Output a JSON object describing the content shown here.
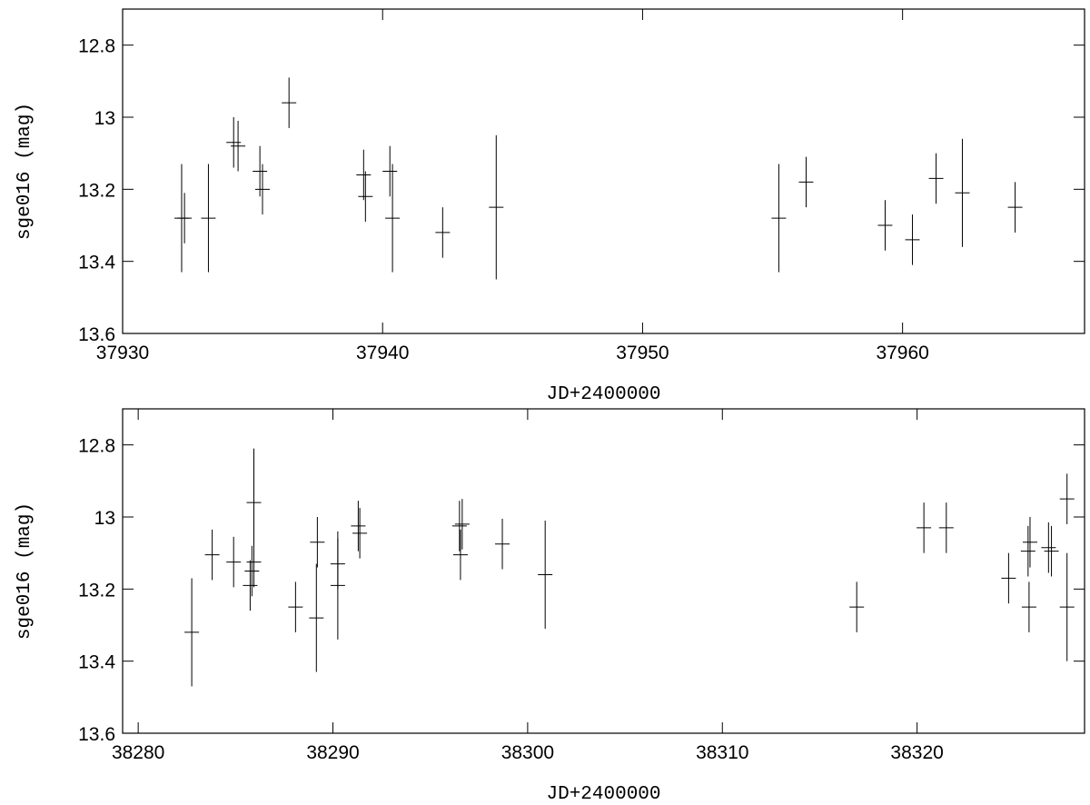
{
  "chart_data": [
    {
      "type": "errorbar",
      "xlabel": "JD+2400000",
      "ylabel": "sge016 (mag)",
      "xlim": [
        37930,
        37967
      ],
      "ylim": [
        13.6,
        12.7
      ],
      "xticks": [
        37930,
        37940,
        37950,
        37960
      ],
      "yticks": [
        12.8,
        13,
        13.2,
        13.4,
        13.6
      ],
      "color": "#000000",
      "x": [
        37932.27,
        37932.38,
        37933.3,
        37934.27,
        37934.44,
        37935.28,
        37935.38,
        37936.4,
        37939.27,
        37939.34,
        37940.28,
        37940.38,
        37942.31,
        37944.37,
        37955.24,
        37956.29,
        37959.33,
        37960.38,
        37961.29,
        37962.3,
        37964.33
      ],
      "values": [
        13.28,
        13.28,
        13.28,
        13.07,
        13.08,
        13.15,
        13.2,
        12.96,
        13.16,
        13.22,
        13.15,
        13.28,
        13.32,
        13.25,
        13.28,
        13.18,
        13.3,
        13.34,
        13.17,
        13.21,
        13.25
      ],
      "errors": [
        0.15,
        0.07,
        0.15,
        0.07,
        0.07,
        0.07,
        0.07,
        0.07,
        0.07,
        0.07,
        0.07,
        0.15,
        0.07,
        0.2,
        0.15,
        0.07,
        0.07,
        0.07,
        0.07,
        0.15,
        0.07
      ]
    },
    {
      "type": "errorbar",
      "xlabel": "JD+2400000",
      "ylabel": "sge016 (mag)",
      "xlim": [
        38279.2,
        38328.6
      ],
      "ylim": [
        13.6,
        12.7
      ],
      "xticks": [
        38280,
        38290,
        38300,
        38310,
        38320
      ],
      "yticks": [
        12.8,
        13,
        13.2,
        13.4,
        13.6
      ],
      "color": "#000000",
      "x": [
        38282.75,
        38283.8,
        38284.9,
        38285.94,
        38285.94,
        38285.75,
        38285.84,
        38288.08,
        38289.15,
        38289.2,
        38290.25,
        38290.25,
        38291.3,
        38291.38,
        38296.5,
        38296.55,
        38296.64,
        38298.7,
        38300.9,
        38316.9,
        38320.35,
        38321.5,
        38324.7,
        38325.7,
        38325.75,
        38325.8,
        38326.75,
        38326.9,
        38327.7,
        38327.7
      ],
      "values": [
        13.32,
        13.105,
        13.125,
        12.96,
        13.125,
        13.19,
        13.15,
        13.25,
        13.28,
        13.07,
        13.13,
        13.19,
        13.025,
        13.045,
        13.025,
        13.105,
        13.02,
        13.075,
        13.16,
        13.25,
        13.03,
        13.03,
        13.17,
        13.095,
        13.25,
        13.07,
        13.085,
        13.095,
        12.95,
        13.25
      ],
      "errors": [
        0.15,
        0.07,
        0.07,
        0.15,
        0.07,
        0.07,
        0.07,
        0.07,
        0.15,
        0.07,
        0.07,
        0.15,
        0.07,
        0.07,
        0.07,
        0.07,
        0.07,
        0.07,
        0.15,
        0.07,
        0.07,
        0.07,
        0.07,
        0.07,
        0.07,
        0.07,
        0.07,
        0.07,
        0.07,
        0.15
      ]
    }
  ]
}
